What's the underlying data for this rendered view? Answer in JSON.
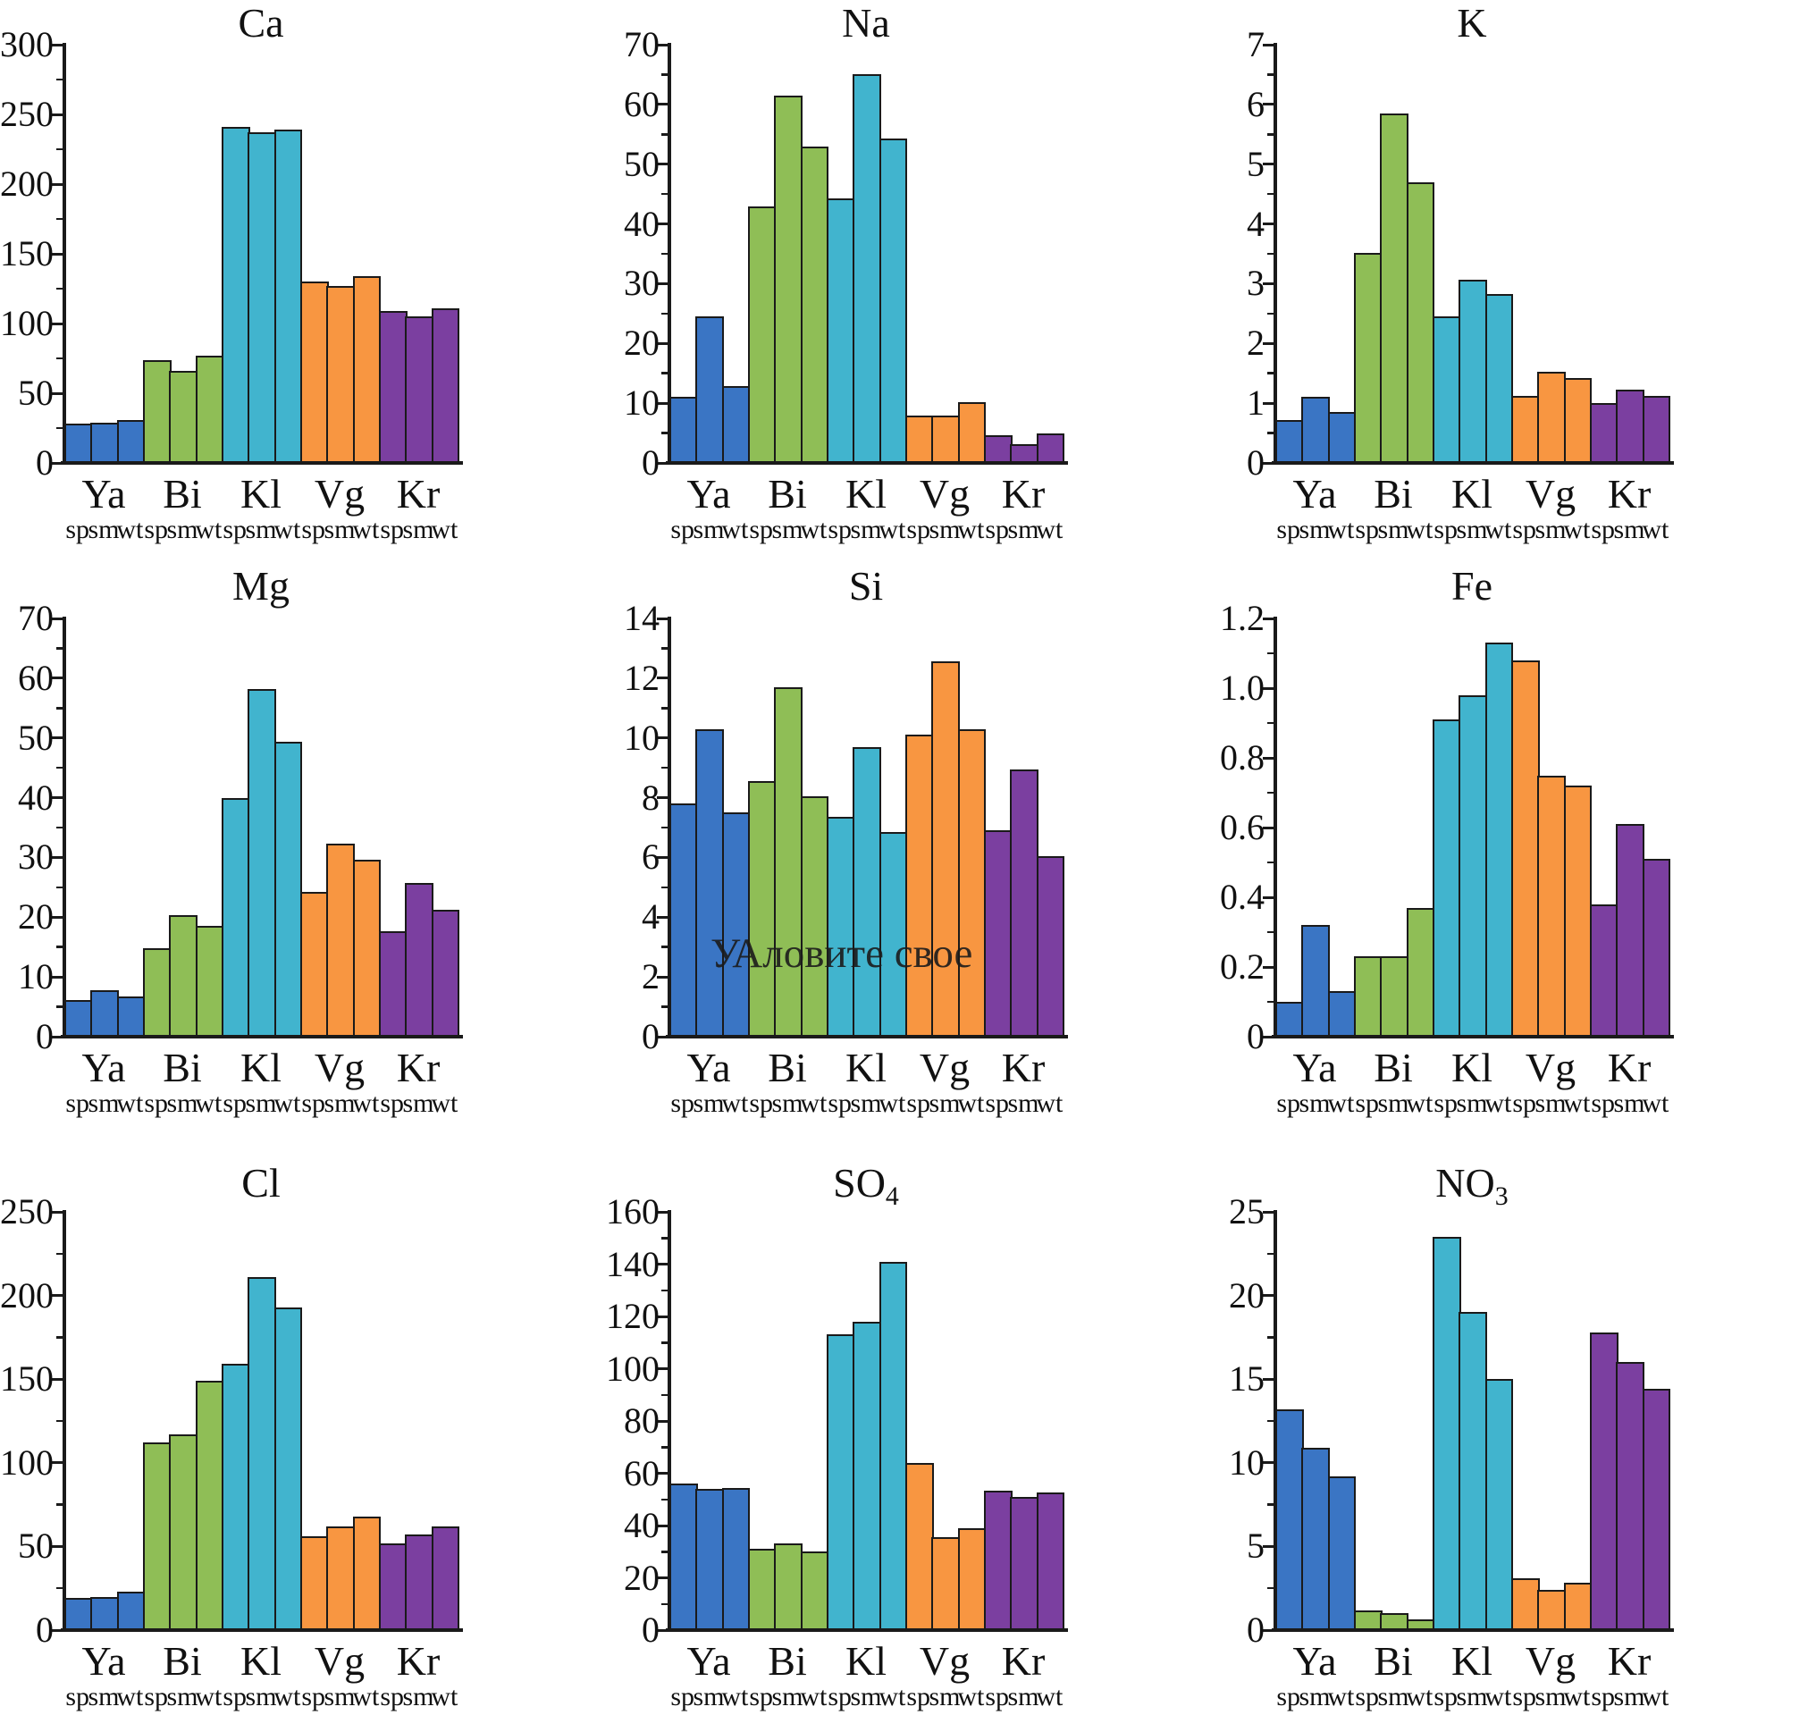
{
  "figure": {
    "description": "3x3 grid of grouped bar charts of element/ion concentrations",
    "grid": false,
    "legend": "none"
  },
  "colors": {
    "blue": "#3a75c4",
    "green": "#8fbe56",
    "cyan": "#41b4ce",
    "orange": "#f89641",
    "purple": "#7b3fa0",
    "axis": "#1a1a1a",
    "bar_border": "#1a1a1a",
    "text": "#111111"
  },
  "categories": [
    "Ya",
    "Bi",
    "Kl",
    "Vg",
    "Kr"
  ],
  "sub_categories": [
    "sp",
    "sm",
    "wt"
  ],
  "watermark": {
    "text": "УАловите свое",
    "chart": "Si"
  },
  "chart_data": [
    {
      "type": "bar",
      "title": "Ca",
      "title_sub": "",
      "xlabel": "",
      "ylabel": "",
      "ylim": [
        0,
        300
      ],
      "ytick_values": [
        0,
        50,
        100,
        150,
        200,
        250,
        300
      ],
      "ytick_labels": [
        "0",
        "50",
        "100",
        "150",
        "200",
        "250",
        "300"
      ],
      "groups": [
        {
          "name": "Ya",
          "color": "blue",
          "values": [
            28,
            29,
            31
          ]
        },
        {
          "name": "Bi",
          "color": "green",
          "values": [
            74,
            66,
            77
          ]
        },
        {
          "name": "Kl",
          "color": "cyan",
          "values": [
            241,
            237,
            239
          ]
        },
        {
          "name": "Vg",
          "color": "orange",
          "values": [
            130,
            127,
            134
          ]
        },
        {
          "name": "Kr",
          "color": "purple",
          "values": [
            109,
            105,
            111
          ]
        }
      ]
    },
    {
      "type": "bar",
      "title": "Na",
      "title_sub": "",
      "xlabel": "",
      "ylabel": "",
      "ylim": [
        0,
        70
      ],
      "ytick_values": [
        0,
        10,
        20,
        30,
        40,
        50,
        60,
        70
      ],
      "ytick_labels": [
        "0",
        "10",
        "20",
        "30",
        "40",
        "50",
        "60",
        "70"
      ],
      "groups": [
        {
          "name": "Ya",
          "color": "blue",
          "values": [
            11,
            24.5,
            12.8
          ]
        },
        {
          "name": "Bi",
          "color": "green",
          "values": [
            43,
            61.5,
            53
          ]
        },
        {
          "name": "Kl",
          "color": "cyan",
          "values": [
            44.3,
            65,
            54.3
          ]
        },
        {
          "name": "Vg",
          "color": "orange",
          "values": [
            8,
            8,
            10.2
          ]
        },
        {
          "name": "Kr",
          "color": "purple",
          "values": [
            4.7,
            3.2,
            5
          ]
        }
      ]
    },
    {
      "type": "bar",
      "title": "K",
      "title_sub": "",
      "xlabel": "",
      "ylabel": "",
      "ylim": [
        0,
        7
      ],
      "ytick_values": [
        0,
        1,
        2,
        3,
        4,
        5,
        6,
        7
      ],
      "ytick_labels": [
        "0",
        "1",
        "2",
        "3",
        "4",
        "5",
        "6",
        "7"
      ],
      "groups": [
        {
          "name": "Ya",
          "color": "blue",
          "values": [
            0.72,
            1.1,
            0.86
          ]
        },
        {
          "name": "Bi",
          "color": "green",
          "values": [
            3.52,
            5.85,
            4.7
          ]
        },
        {
          "name": "Kl",
          "color": "cyan",
          "values": [
            2.46,
            3.06,
            2.82
          ]
        },
        {
          "name": "Vg",
          "color": "orange",
          "values": [
            1.12,
            1.52,
            1.42
          ]
        },
        {
          "name": "Kr",
          "color": "purple",
          "values": [
            1.0,
            1.22,
            1.12
          ]
        }
      ]
    },
    {
      "type": "bar",
      "title": "Mg",
      "title_sub": "",
      "xlabel": "",
      "ylabel": "",
      "ylim": [
        0,
        70
      ],
      "ytick_values": [
        0,
        10,
        20,
        30,
        40,
        50,
        60,
        70
      ],
      "ytick_labels": [
        "0",
        "10",
        "20",
        "30",
        "40",
        "50",
        "60",
        "70"
      ],
      "groups": [
        {
          "name": "Ya",
          "color": "blue",
          "values": [
            6.2,
            7.8,
            6.8
          ]
        },
        {
          "name": "Bi",
          "color": "green",
          "values": [
            14.8,
            20.3,
            18.5
          ]
        },
        {
          "name": "Kl",
          "color": "cyan",
          "values": [
            40,
            58.2,
            49.3
          ]
        },
        {
          "name": "Vg",
          "color": "orange",
          "values": [
            24.2,
            32.3,
            29.6
          ]
        },
        {
          "name": "Kr",
          "color": "purple",
          "values": [
            17.7,
            25.8,
            21.2
          ]
        }
      ]
    },
    {
      "type": "bar",
      "title": "Si",
      "title_sub": "",
      "xlabel": "",
      "ylabel": "",
      "ylim": [
        0,
        14
      ],
      "ytick_values": [
        0,
        2,
        4,
        6,
        8,
        10,
        12,
        14
      ],
      "ytick_labels": [
        "0",
        "2",
        "4",
        "6",
        "8",
        "10",
        "12",
        "14"
      ],
      "groups": [
        {
          "name": "Ya",
          "color": "blue",
          "values": [
            7.8,
            10.3,
            7.5
          ]
        },
        {
          "name": "Bi",
          "color": "green",
          "values": [
            8.55,
            11.7,
            8.05
          ]
        },
        {
          "name": "Kl",
          "color": "cyan",
          "values": [
            7.35,
            9.7,
            6.85
          ]
        },
        {
          "name": "Vg",
          "color": "orange",
          "values": [
            10.1,
            12.55,
            10.3
          ]
        },
        {
          "name": "Kr",
          "color": "purple",
          "values": [
            6.9,
            8.95,
            6.05
          ]
        }
      ]
    },
    {
      "type": "bar",
      "title": "Fe",
      "title_sub": "",
      "xlabel": "",
      "ylabel": "",
      "ylim": [
        0,
        1.2
      ],
      "ytick_values": [
        0,
        0.2,
        0.4,
        0.6,
        0.8,
        1.0,
        1.2
      ],
      "ytick_labels": [
        "0",
        "0.2",
        "0.4",
        "0.6",
        "0.8",
        "1.0",
        "1.2"
      ],
      "groups": [
        {
          "name": "Ya",
          "color": "blue",
          "values": [
            0.1,
            0.32,
            0.13
          ]
        },
        {
          "name": "Bi",
          "color": "green",
          "values": [
            0.23,
            0.23,
            0.37
          ]
        },
        {
          "name": "Kl",
          "color": "cyan",
          "values": [
            0.91,
            0.98,
            1.13
          ]
        },
        {
          "name": "Vg",
          "color": "orange",
          "values": [
            1.08,
            0.75,
            0.72
          ]
        },
        {
          "name": "Kr",
          "color": "purple",
          "values": [
            0.38,
            0.61,
            0.51
          ]
        }
      ]
    },
    {
      "type": "bar",
      "title": "Cl",
      "title_sub": "",
      "xlabel": "",
      "ylabel": "",
      "ylim": [
        0,
        250
      ],
      "ytick_values": [
        0,
        50,
        100,
        150,
        200,
        250
      ],
      "ytick_labels": [
        "0",
        "50",
        "100",
        "150",
        "200",
        "250"
      ],
      "groups": [
        {
          "name": "Ya",
          "color": "blue",
          "values": [
            19,
            20,
            23
          ]
        },
        {
          "name": "Bi",
          "color": "green",
          "values": [
            112,
            117,
            149
          ]
        },
        {
          "name": "Kl",
          "color": "cyan",
          "values": [
            159,
            211,
            193
          ]
        },
        {
          "name": "Vg",
          "color": "orange",
          "values": [
            56,
            62,
            68
          ]
        },
        {
          "name": "Kr",
          "color": "purple",
          "values": [
            52,
            57,
            62
          ]
        }
      ]
    },
    {
      "type": "bar",
      "title": "SO",
      "title_sub": "4",
      "xlabel": "",
      "ylabel": "",
      "ylim": [
        0,
        160
      ],
      "ytick_values": [
        0,
        20,
        40,
        60,
        80,
        100,
        120,
        140,
        160
      ],
      "ytick_labels": [
        "0",
        "20",
        "40",
        "60",
        "80",
        "100",
        "120",
        "140",
        "160"
      ],
      "groups": [
        {
          "name": "Ya",
          "color": "blue",
          "values": [
            56,
            54,
            54.5
          ]
        },
        {
          "name": "Bi",
          "color": "green",
          "values": [
            31,
            33,
            30
          ]
        },
        {
          "name": "Kl",
          "color": "cyan",
          "values": [
            113,
            118,
            141
          ]
        },
        {
          "name": "Vg",
          "color": "orange",
          "values": [
            64,
            35.5,
            39
          ]
        },
        {
          "name": "Kr",
          "color": "purple",
          "values": [
            53.5,
            51,
            52.5
          ]
        }
      ]
    },
    {
      "type": "bar",
      "title": "NO",
      "title_sub": "3",
      "xlabel": "",
      "ylabel": "",
      "ylim": [
        0,
        25
      ],
      "ytick_values": [
        0,
        5,
        10,
        15,
        20,
        25
      ],
      "ytick_labels": [
        "0",
        "5",
        "10",
        "15",
        "20",
        "25"
      ],
      "groups": [
        {
          "name": "Ya",
          "color": "blue",
          "values": [
            13.2,
            10.9,
            9.2
          ]
        },
        {
          "name": "Bi",
          "color": "green",
          "values": [
            1.2,
            1.0,
            0.65
          ]
        },
        {
          "name": "Kl",
          "color": "cyan",
          "values": [
            23.5,
            19.0,
            15.0
          ]
        },
        {
          "name": "Vg",
          "color": "orange",
          "values": [
            3.1,
            2.4,
            2.85
          ]
        },
        {
          "name": "Kr",
          "color": "purple",
          "values": [
            17.8,
            16.0,
            14.4
          ]
        }
      ]
    }
  ]
}
